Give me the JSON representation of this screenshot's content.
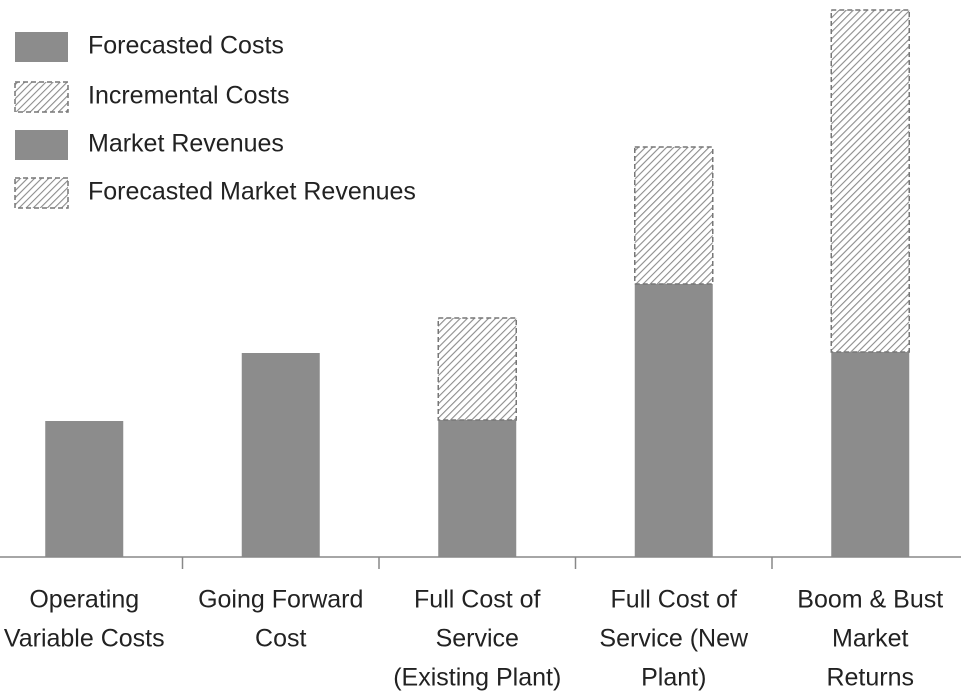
{
  "chart_data": {
    "type": "stacked-bar",
    "categories": [
      [
        "Operating",
        "Variable Costs"
      ],
      [
        "Going Forward",
        "Cost"
      ],
      [
        "Full Cost of",
        "Service",
        "(Existing Plant)"
      ],
      [
        "Full Cost of",
        "Service (New",
        "Plant)"
      ],
      [
        "Boom & Bust",
        "Market",
        "Returns"
      ]
    ],
    "series": [
      {
        "name": "Forecasted Costs",
        "color": "#8c8c8c",
        "hatch": false,
        "values": [
          136,
          204,
          137,
          273,
          null
        ]
      },
      {
        "name": "Incremental Costs",
        "color": "#8c8c8c",
        "hatch": true,
        "values": [
          null,
          null,
          102,
          137,
          null
        ]
      },
      {
        "name": "Market Revenues",
        "color": "#8c8c8c",
        "hatch": false,
        "values": [
          null,
          null,
          null,
          null,
          205
        ]
      },
      {
        "name": "Forecasted Market Revenues",
        "color": "#8c8c8c",
        "hatch": true,
        "values": [
          null,
          null,
          null,
          null,
          342
        ]
      }
    ],
    "ylim": [
      0,
      547
    ],
    "legend": "upper left"
  }
}
